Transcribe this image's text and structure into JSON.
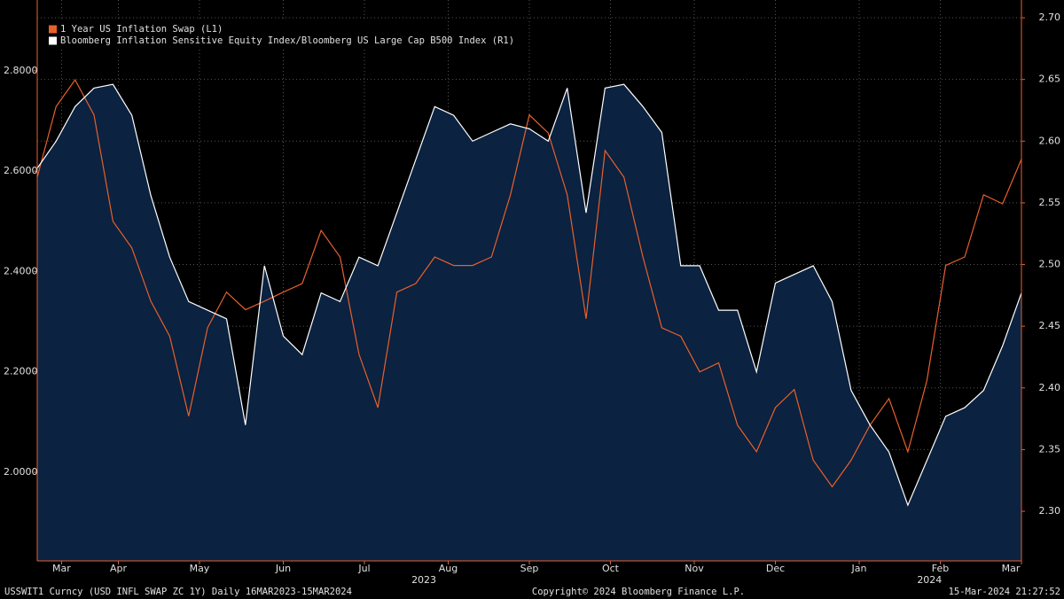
{
  "chart_data": {
    "type": "line",
    "legend": "top-left",
    "grid": true,
    "x": [
      "2023-03-17",
      "2023-03-24",
      "2023-03-31",
      "2023-04-07",
      "2023-04-14",
      "2023-04-21",
      "2023-04-28",
      "2023-05-05",
      "2023-05-12",
      "2023-05-19",
      "2023-05-26",
      "2023-06-02",
      "2023-06-09",
      "2023-06-16",
      "2023-06-23",
      "2023-06-30",
      "2023-07-07",
      "2023-07-14",
      "2023-07-21",
      "2023-07-28",
      "2023-08-04",
      "2023-08-11",
      "2023-08-18",
      "2023-08-25",
      "2023-09-01",
      "2023-09-08",
      "2023-09-15",
      "2023-09-22",
      "2023-09-29",
      "2023-10-06",
      "2023-10-13",
      "2023-10-20",
      "2023-10-27",
      "2023-11-03",
      "2023-11-10",
      "2023-11-17",
      "2023-11-24",
      "2023-12-01",
      "2023-12-08",
      "2023-12-15",
      "2023-12-22",
      "2023-12-29",
      "2024-01-05",
      "2024-01-12",
      "2024-01-19",
      "2024-01-26",
      "2024-02-02",
      "2024-02-09",
      "2024-02-16",
      "2024-02-23",
      "2024-03-01",
      "2024-03-08",
      "2024-03-15"
    ],
    "xlim": [
      "2023-03-17",
      "2024-03-15"
    ],
    "xticks": [
      {
        "value": "2023-03-26",
        "label": "Mar"
      },
      {
        "value": "2023-04-16",
        "label": "Apr"
      },
      {
        "value": "2023-05-16",
        "label": "May"
      },
      {
        "value": "2023-06-16",
        "label": "Jun"
      },
      {
        "value": "2023-07-16",
        "label": "Jul"
      },
      {
        "value": "2023-08-16",
        "label": "Aug"
      },
      {
        "value": "2023-09-15",
        "label": "Sep"
      },
      {
        "value": "2023-10-15",
        "label": "Oct"
      },
      {
        "value": "2023-11-15",
        "label": "Nov"
      },
      {
        "value": "2023-12-15",
        "label": "Dec"
      },
      {
        "value": "2024-01-15",
        "label": "Jan"
      },
      {
        "value": "2024-02-14",
        "label": "Feb"
      },
      {
        "value": "2024-03-15",
        "label": "Mar"
      }
    ],
    "year_labels": [
      {
        "value": "2023-08-07",
        "label": "2023"
      },
      {
        "value": "2024-02-10",
        "label": "2024"
      }
    ],
    "ylim": [
      1.8235,
      2.941
    ],
    "yticks": [
      {
        "value": 2.0,
        "label": "2.0000"
      },
      {
        "value": 2.2,
        "label": "2.2000"
      },
      {
        "value": 2.4,
        "label": "2.4000"
      },
      {
        "value": 2.6,
        "label": "2.6000"
      },
      {
        "value": 2.8,
        "label": "2.8000"
      }
    ],
    "y2lim": [
      2.2598,
      2.7144
    ],
    "y2ticks": [
      {
        "value": 2.3,
        "label": "2.30"
      },
      {
        "value": 2.35,
        "label": "2.35"
      },
      {
        "value": 2.4,
        "label": "2.40"
      },
      {
        "value": 2.45,
        "label": "2.45"
      },
      {
        "value": 2.5,
        "label": "2.50"
      },
      {
        "value": 2.55,
        "label": "2.55"
      },
      {
        "value": 2.6,
        "label": "2.60"
      },
      {
        "value": 2.65,
        "label": "2.65"
      },
      {
        "value": 2.7,
        "label": "2.70"
      }
    ],
    "series": [
      {
        "name": "1 Year US Inflation Swap (L1)",
        "color": "#e8602c",
        "axis": "y",
        "values": [
          2.588,
          2.729,
          2.782,
          2.712,
          2.5,
          2.447,
          2.341,
          2.271,
          2.112,
          2.288,
          2.359,
          2.324,
          2.341,
          2.359,
          2.376,
          2.482,
          2.429,
          2.235,
          2.129,
          2.359,
          2.376,
          2.429,
          2.412,
          2.412,
          2.429,
          2.553,
          2.712,
          2.676,
          2.553,
          2.306,
          2.641,
          2.588,
          2.429,
          2.288,
          2.271,
          2.2,
          2.218,
          2.094,
          2.041,
          2.129,
          2.165,
          2.024,
          1.971,
          2.024,
          2.094,
          2.147,
          2.041,
          2.182,
          2.412,
          2.429,
          2.553,
          2.535,
          2.624
        ]
      },
      {
        "name": "Bloomberg Inflation Sensitive Equity Index/Bloomberg US Large Cap B500 Index (R1)",
        "color": "#ffffff",
        "fill": "#0b2240",
        "axis": "y2",
        "values": [
          2.578,
          2.6,
          2.628,
          2.643,
          2.646,
          2.621,
          2.556,
          2.506,
          2.47,
          2.463,
          2.456,
          2.37,
          2.499,
          2.442,
          2.427,
          2.477,
          2.47,
          2.506,
          2.499,
          2.542,
          2.585,
          2.628,
          2.621,
          2.6,
          2.607,
          2.614,
          2.61,
          2.6,
          2.643,
          2.542,
          2.643,
          2.646,
          2.628,
          2.607,
          2.499,
          2.499,
          2.463,
          2.463,
          2.413,
          2.485,
          2.492,
          2.499,
          2.47,
          2.398,
          2.37,
          2.348,
          2.305,
          2.341,
          2.377,
          2.384,
          2.398,
          2.434,
          2.477
        ]
      }
    ],
    "footer": {
      "left": "USSWIT1 Curncy (USD INFL SWAP ZC 1Y)  Daily 16MAR2023-15MAR2024",
      "center": "Copyright© 2024 Bloomberg Finance L.P.",
      "right": "15-Mar-2024 21:27:52"
    }
  }
}
